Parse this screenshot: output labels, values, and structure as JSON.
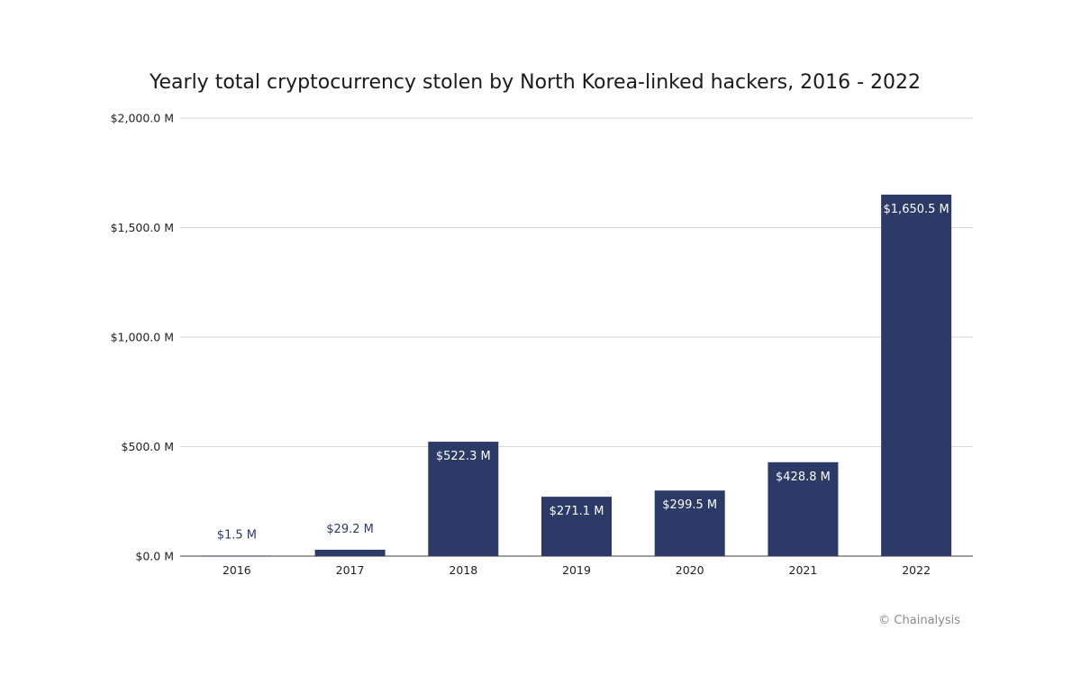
{
  "chart_data": {
    "type": "bar",
    "title": "Yearly total cryptocurrency stolen by North Korea-linked hackers, 2016 - 2022",
    "categories": [
      "2016",
      "2017",
      "2018",
      "2019",
      "2020",
      "2021",
      "2022"
    ],
    "values": [
      1.5,
      29.2,
      522.3,
      271.1,
      299.5,
      428.8,
      1650.5
    ],
    "data_labels": [
      "$1.5 M",
      "$29.2 M",
      "$522.3 M",
      "$271.1 M",
      "$299.5 M",
      "$428.8 M",
      "$1,650.5 M"
    ],
    "ylim": [
      0,
      2000
    ],
    "y_ticks": [
      {
        "value": 0,
        "label": "$0.0 M"
      },
      {
        "value": 500,
        "label": "$500.0 M"
      },
      {
        "value": 1000,
        "label": "$1,000.0 M"
      },
      {
        "value": 1500,
        "label": "$1,500.0 M"
      },
      {
        "value": 2000,
        "label": "$2,000.0 M"
      }
    ],
    "grid": true,
    "legend": "none",
    "bar_color": "#2b3a67",
    "grid_color": "#d9d9d9"
  },
  "credit": "© Chainalysis"
}
